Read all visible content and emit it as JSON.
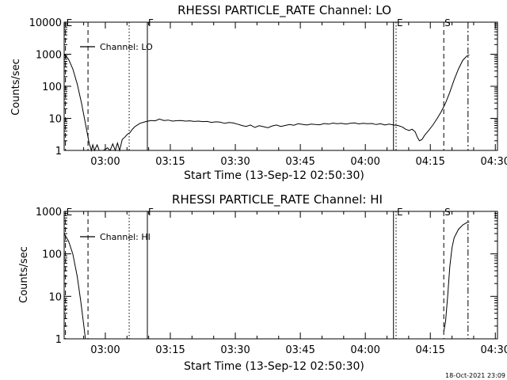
{
  "footer": {
    "timestamp": "18-Oct-2021 23:09"
  },
  "chart_data": [
    {
      "type": "line",
      "title": "RHESSI PARTICLE_RATE Channel: LO",
      "xlabel": "Start Time (13-Sep-12 02:50:30)",
      "ylabel": "Counts/sec",
      "x_unit": "minutes after 02:50:30",
      "xlim": [
        0,
        100
      ],
      "ylim": [
        1,
        10000
      ],
      "yscale": "log",
      "grid": false,
      "legend": {
        "position": "top-left",
        "label": "Channel: LO"
      },
      "x_ticks": [
        {
          "x": 9.5,
          "label": "03:00"
        },
        {
          "x": 24.5,
          "label": "03:15"
        },
        {
          "x": 39.5,
          "label": "03:30"
        },
        {
          "x": 54.5,
          "label": "03:45"
        },
        {
          "x": 69.5,
          "label": "04:00"
        },
        {
          "x": 84.5,
          "label": "04:15"
        },
        {
          "x": 99.5,
          "label": "04:30"
        }
      ],
      "y_ticks": [
        {
          "y": 1,
          "label": "1"
        },
        {
          "y": 10,
          "label": "10"
        },
        {
          "y": 100,
          "label": "100"
        },
        {
          "y": 1000,
          "label": "1000"
        },
        {
          "y": 10000,
          "label": "10000"
        }
      ],
      "markers": [
        {
          "x": 0.3,
          "label": "E",
          "style": "dashed"
        },
        {
          "x": 5.5,
          "label": "",
          "style": "dashed"
        },
        {
          "x": 15.0,
          "label": "",
          "style": "dotted"
        },
        {
          "x": 19.2,
          "label": "F",
          "style": "solid"
        },
        {
          "x": 76.0,
          "label": "",
          "style": "solid"
        },
        {
          "x": 76.6,
          "label": "E",
          "style": "dotted"
        },
        {
          "x": 87.6,
          "label": "S",
          "style": "dashed"
        },
        {
          "x": 93.2,
          "label": "",
          "style": "dashdot"
        }
      ],
      "series": [
        {
          "name": "Channel: LO",
          "points": [
            [
              0,
              1000
            ],
            [
              1,
              700
            ],
            [
              2,
              350
            ],
            [
              3,
              120
            ],
            [
              4,
              30
            ],
            [
              5,
              6
            ],
            [
              5.8,
              1.6
            ],
            [
              6.3,
              1
            ],
            [
              6.6,
              1.5
            ],
            [
              7,
              1
            ],
            [
              7.6,
              1.5
            ],
            [
              8.1,
              1
            ],
            [
              9,
              1
            ],
            [
              10,
              1.2
            ],
            [
              10.6,
              1
            ],
            [
              11.2,
              1.6
            ],
            [
              11.8,
              1
            ],
            [
              12.3,
              1.7
            ],
            [
              12.8,
              1
            ],
            [
              13.4,
              2.2
            ],
            [
              14,
              2.6
            ],
            [
              14.6,
              3.2
            ],
            [
              15.2,
              3.6
            ],
            [
              15.7,
              4.5
            ],
            [
              16.3,
              5.5
            ],
            [
              16.9,
              6.2
            ],
            [
              17.5,
              7
            ],
            [
              18.2,
              7.5
            ],
            [
              19,
              8
            ],
            [
              20,
              8.6
            ],
            [
              21,
              8.4
            ],
            [
              22,
              9.5
            ],
            [
              23,
              8.6
            ],
            [
              24,
              8.8
            ],
            [
              25,
              8.2
            ],
            [
              26,
              8.5
            ],
            [
              27,
              8.6
            ],
            [
              28,
              8.2
            ],
            [
              29,
              8.4
            ],
            [
              30,
              8.0
            ],
            [
              31,
              8.2
            ],
            [
              32,
              7.9
            ],
            [
              33,
              8.0
            ],
            [
              34,
              7.5
            ],
            [
              35,
              7.8
            ],
            [
              36,
              7.6
            ],
            [
              37,
              7.0
            ],
            [
              38,
              7.4
            ],
            [
              39,
              7.2
            ],
            [
              40,
              6.6
            ],
            [
              41,
              6.0
            ],
            [
              42,
              5.6
            ],
            [
              43,
              6.2
            ],
            [
              44,
              5.2
            ],
            [
              45,
              5.9
            ],
            [
              46,
              5.5
            ],
            [
              47,
              5.1
            ],
            [
              48,
              5.8
            ],
            [
              49,
              6.2
            ],
            [
              50,
              5.6
            ],
            [
              51,
              6.0
            ],
            [
              52,
              6.4
            ],
            [
              53,
              6.1
            ],
            [
              54,
              6.8
            ],
            [
              55,
              6.5
            ],
            [
              56,
              6.2
            ],
            [
              57,
              6.6
            ],
            [
              58,
              6.4
            ],
            [
              59,
              6.3
            ],
            [
              60,
              6.9
            ],
            [
              61,
              6.6
            ],
            [
              62,
              7.1
            ],
            [
              63,
              6.8
            ],
            [
              64,
              7.0
            ],
            [
              65,
              6.6
            ],
            [
              66,
              7.0
            ],
            [
              67,
              7.2
            ],
            [
              68,
              6.7
            ],
            [
              69,
              7.0
            ],
            [
              70,
              6.8
            ],
            [
              71,
              6.9
            ],
            [
              72,
              6.4
            ],
            [
              73,
              6.8
            ],
            [
              74,
              6.2
            ],
            [
              75,
              6.6
            ],
            [
              76,
              6.2
            ],
            [
              77,
              6.0
            ],
            [
              78,
              5.4
            ],
            [
              78.8,
              4.6
            ],
            [
              79.6,
              4.2
            ],
            [
              80.3,
              4.6
            ],
            [
              81,
              3.8
            ],
            [
              81.5,
              2.6
            ],
            [
              82,
              2.0
            ],
            [
              82.6,
              2.2
            ],
            [
              83.2,
              3.0
            ],
            [
              84,
              4.0
            ],
            [
              85,
              6.0
            ],
            [
              86,
              9.5
            ],
            [
              87,
              16
            ],
            [
              88,
              30
            ],
            [
              89,
              65
            ],
            [
              90,
              160
            ],
            [
              91,
              350
            ],
            [
              92,
              650
            ],
            [
              93,
              900
            ],
            [
              93.5,
              950
            ]
          ]
        }
      ]
    },
    {
      "type": "line",
      "title": "RHESSI PARTICLE_RATE Channel: HI",
      "xlabel": "Start Time (13-Sep-12 02:50:30)",
      "ylabel": "Counts/sec",
      "x_unit": "minutes after 02:50:30",
      "xlim": [
        0,
        100
      ],
      "ylim": [
        1,
        1000
      ],
      "yscale": "log",
      "grid": false,
      "legend": {
        "position": "top-left",
        "label": "Channel: HI"
      },
      "x_ticks": [
        {
          "x": 9.5,
          "label": "03:00"
        },
        {
          "x": 24.5,
          "label": "03:15"
        },
        {
          "x": 39.5,
          "label": "03:30"
        },
        {
          "x": 54.5,
          "label": "03:45"
        },
        {
          "x": 69.5,
          "label": "04:00"
        },
        {
          "x": 84.5,
          "label": "04:15"
        },
        {
          "x": 99.5,
          "label": "04:30"
        }
      ],
      "y_ticks": [
        {
          "y": 1,
          "label": "1"
        },
        {
          "y": 10,
          "label": "10"
        },
        {
          "y": 100,
          "label": "100"
        },
        {
          "y": 1000,
          "label": "1000"
        }
      ],
      "markers": [
        {
          "x": 0.3,
          "label": "E",
          "style": "dashed"
        },
        {
          "x": 5.5,
          "label": "",
          "style": "dashed"
        },
        {
          "x": 15.0,
          "label": "",
          "style": "dotted"
        },
        {
          "x": 19.2,
          "label": "F",
          "style": "solid"
        },
        {
          "x": 76.0,
          "label": "",
          "style": "solid"
        },
        {
          "x": 76.6,
          "label": "E",
          "style": "dotted"
        },
        {
          "x": 87.6,
          "label": "S",
          "style": "dashed"
        },
        {
          "x": 93.2,
          "label": "",
          "style": "dashdot"
        }
      ],
      "series": [
        {
          "name": "Channel: HI",
          "points": [
            [
              0,
              300
            ],
            [
              1,
              200
            ],
            [
              2,
              100
            ],
            [
              3,
              30
            ],
            [
              3.8,
              8
            ],
            [
              4.5,
              2.2
            ],
            [
              4.9,
              1
            ]
          ]
        },
        {
          "name": "Channel: HI",
          "points": [
            [
              87.6,
              1.5
            ],
            [
              88,
              2.5
            ],
            [
              88.5,
              10
            ],
            [
              89,
              50
            ],
            [
              89.5,
              140
            ],
            [
              90,
              240
            ],
            [
              91,
              380
            ],
            [
              92,
              480
            ],
            [
              93,
              550
            ],
            [
              93.5,
              560
            ]
          ]
        }
      ]
    }
  ]
}
